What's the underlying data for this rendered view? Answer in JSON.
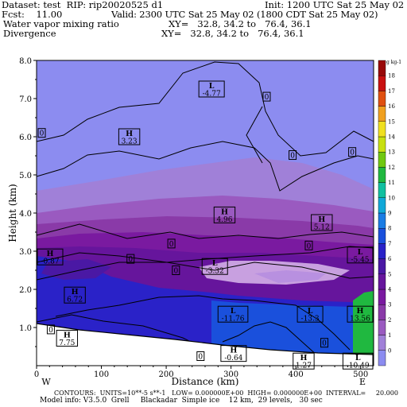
{
  "header": {
    "dataset_line": "Dataset: test  RIP: rip20020525 d1",
    "init_line": "Init: 1200 UTC Sat 25 May 02",
    "fcst_line": "Fcst:    11.00",
    "valid_line": "Valid: 2300 UTC Sat 25 May 02 (1800 CDT Sat 25 May 02)",
    "field1_name": "Water vapor mixing ratio",
    "field1_xy": "XY=   32.8, 34.2 to   76.4, 36.1",
    "field2_name": "Divergence",
    "field2_xy": "XY=   32.8, 34.2 to   76.4, 36.1"
  },
  "footer": {
    "contours_line": "CONTOURS:  UNITS=10**-5 s**-1   LOW= 0.000000E+00  HIGH= 0.000000E+00  INTERVAL=     20.000",
    "model_line": "Model info: V3.5.0  Grell     Blackadar  Simple ice    12 km,  29 levels,   30 sec"
  },
  "chart_data": {
    "type": "heatmap",
    "xlabel": "Distance (km)",
    "ylabel": "Height (km)",
    "x_ticks": [
      "0",
      "100",
      "200",
      "300",
      "400",
      "500"
    ],
    "y_ticks": [
      "1.0",
      "2.0",
      "3.0",
      "4.0",
      "5.0",
      "6.0",
      "7.0",
      "8.0"
    ],
    "xlim": [
      0,
      520
    ],
    "ylim": [
      0,
      8
    ],
    "x_end_labels": {
      "left": "W",
      "right": "E"
    },
    "colorbar": {
      "unit_label": "g kg-1",
      "levels": [
        "0",
        "1",
        "2",
        "3",
        "4",
        "5",
        "6",
        "7",
        "8",
        "9",
        "10",
        "11",
        "12",
        "13",
        "14",
        "15",
        "16",
        "17",
        "18"
      ],
      "colors": [
        "#8c8cf0",
        "#a080d8",
        "#9a5ac0",
        "#8a3aa8",
        "#7a1aa0",
        "#66159c",
        "#4a18a4",
        "#2a22c8",
        "#1a50dc",
        "#1a7ce4",
        "#10a8d8",
        "#10c0a0",
        "#20b840",
        "#70c810",
        "#c8e010",
        "#f0e020",
        "#f0a020",
        "#e05010",
        "#c81010",
        "#980808"
      ]
    },
    "layers": [
      {
        "name": "band-0",
        "color_index": 0
      },
      {
        "name": "band-1",
        "color_index": 1
      },
      {
        "name": "band-2",
        "color_index": 2
      },
      {
        "name": "band-3",
        "color_index": 3
      },
      {
        "name": "band-4",
        "color_index": 4
      },
      {
        "name": "band-5",
        "color_index": 5
      },
      {
        "name": "band-7",
        "color_index": 7
      },
      {
        "name": "band-8",
        "color_index": 8
      },
      {
        "name": "band-12",
        "color_index": 12
      }
    ],
    "extrema_labels": [
      {
        "kind": "L",
        "value": "-4.77",
        "x": 270,
        "y": 7.25
      },
      {
        "kind": "H",
        "value": "3.23",
        "x": 143,
        "y": 6.0
      },
      {
        "kind": "H",
        "value": "4.96",
        "x": 290,
        "y": 3.95
      },
      {
        "kind": "H",
        "value": "5.12",
        "x": 440,
        "y": 3.75
      },
      {
        "kind": "L",
        "value": "-5.45",
        "x": 508,
        "y": 2.9
      },
      {
        "kind": "H",
        "value": "-0.87",
        "x": 5,
        "y": 2.85
      },
      {
        "kind": "L",
        "value": "-3.32",
        "x": 275,
        "y": 2.6
      },
      {
        "kind": "H",
        "value": "6.72",
        "x": 59,
        "y": 1.85
      },
      {
        "kind": "L",
        "value": "-11.76",
        "x": 303,
        "y": 1.35
      },
      {
        "kind": "L",
        "value": "-13.3",
        "x": 422,
        "y": 1.35
      },
      {
        "kind": "H",
        "value": "13.56",
        "x": 512,
        "y": 1.35
      },
      {
        "kind": "H",
        "value": "7.75",
        "x": 47,
        "y": 0.72
      },
      {
        "kind": "H",
        "value": "-0.64",
        "x": 304,
        "y": 0.32
      },
      {
        "kind": "H",
        "value": "1.27",
        "x": 412,
        "y": 0.12
      },
      {
        "kind": "L",
        "value": "-10.49",
        "x": 503,
        "y": 0.12
      }
    ],
    "zero_labels": [
      {
        "text": "0",
        "x": 8,
        "y": 6.1
      },
      {
        "text": "0",
        "x": 355,
        "y": 7.05
      },
      {
        "text": "0",
        "x": 395,
        "y": 5.52
      },
      {
        "text": "0",
        "x": 487,
        "y": 5.6
      },
      {
        "text": "0",
        "x": 208,
        "y": 3.2
      },
      {
        "text": "0",
        "x": 420,
        "y": 3.15
      },
      {
        "text": "0",
        "x": 145,
        "y": 2.8
      },
      {
        "text": "0",
        "x": 215,
        "y": 2.5
      },
      {
        "text": "0",
        "x": 22,
        "y": 0.95
      },
      {
        "text": "0",
        "x": 253,
        "y": 0.25
      },
      {
        "text": "0",
        "x": 444,
        "y": 0.6
      }
    ]
  }
}
